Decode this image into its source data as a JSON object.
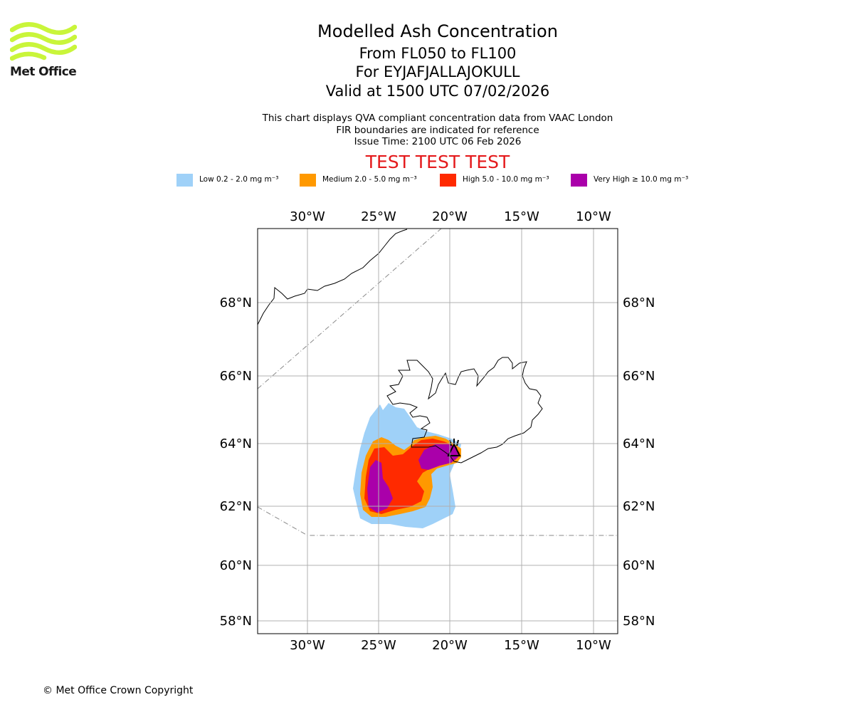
{
  "brand": {
    "name": "Met Office",
    "color": "#c9f53a"
  },
  "header": {
    "title": "Modelled Ash Concentration",
    "subtitle_levels": "From FL050 to FL100",
    "subtitle_volcano": "For EYJAFJALLAJOKULL",
    "subtitle_valid": "Valid at 1500 UTC 07/02/2026",
    "note_line1": "This chart displays QVA compliant concentration data from VAAC London",
    "note_line2": "FIR boundaries are indicated for reference",
    "note_line3": "Issue Time: 2100 UTC 06 Feb 2026",
    "test_banner": "TEST TEST TEST"
  },
  "legend": [
    {
      "label": "Low 0.2 - 2.0 mg m⁻³",
      "color": "#9fd1f8"
    },
    {
      "label": "Medium 2.0 - 5.0 mg m⁻³",
      "color": "#ff9900"
    },
    {
      "label": "High 5.0 - 10.0 mg m⁻³",
      "color": "#ff2a00"
    },
    {
      "label": "Very High  ≥  10.0 mg m⁻³",
      "color": "#aa00aa"
    }
  ],
  "map": {
    "lon_ticks": [
      "30°W",
      "25°W",
      "20°W",
      "15°W",
      "10°W"
    ],
    "lat_ticks": [
      "68°N",
      "66°N",
      "64°N",
      "62°N",
      "60°N",
      "58°N"
    ],
    "volcano_icon": "volcano-icon"
  },
  "footer": {
    "copyright": "© Met Office Crown Copyright"
  }
}
